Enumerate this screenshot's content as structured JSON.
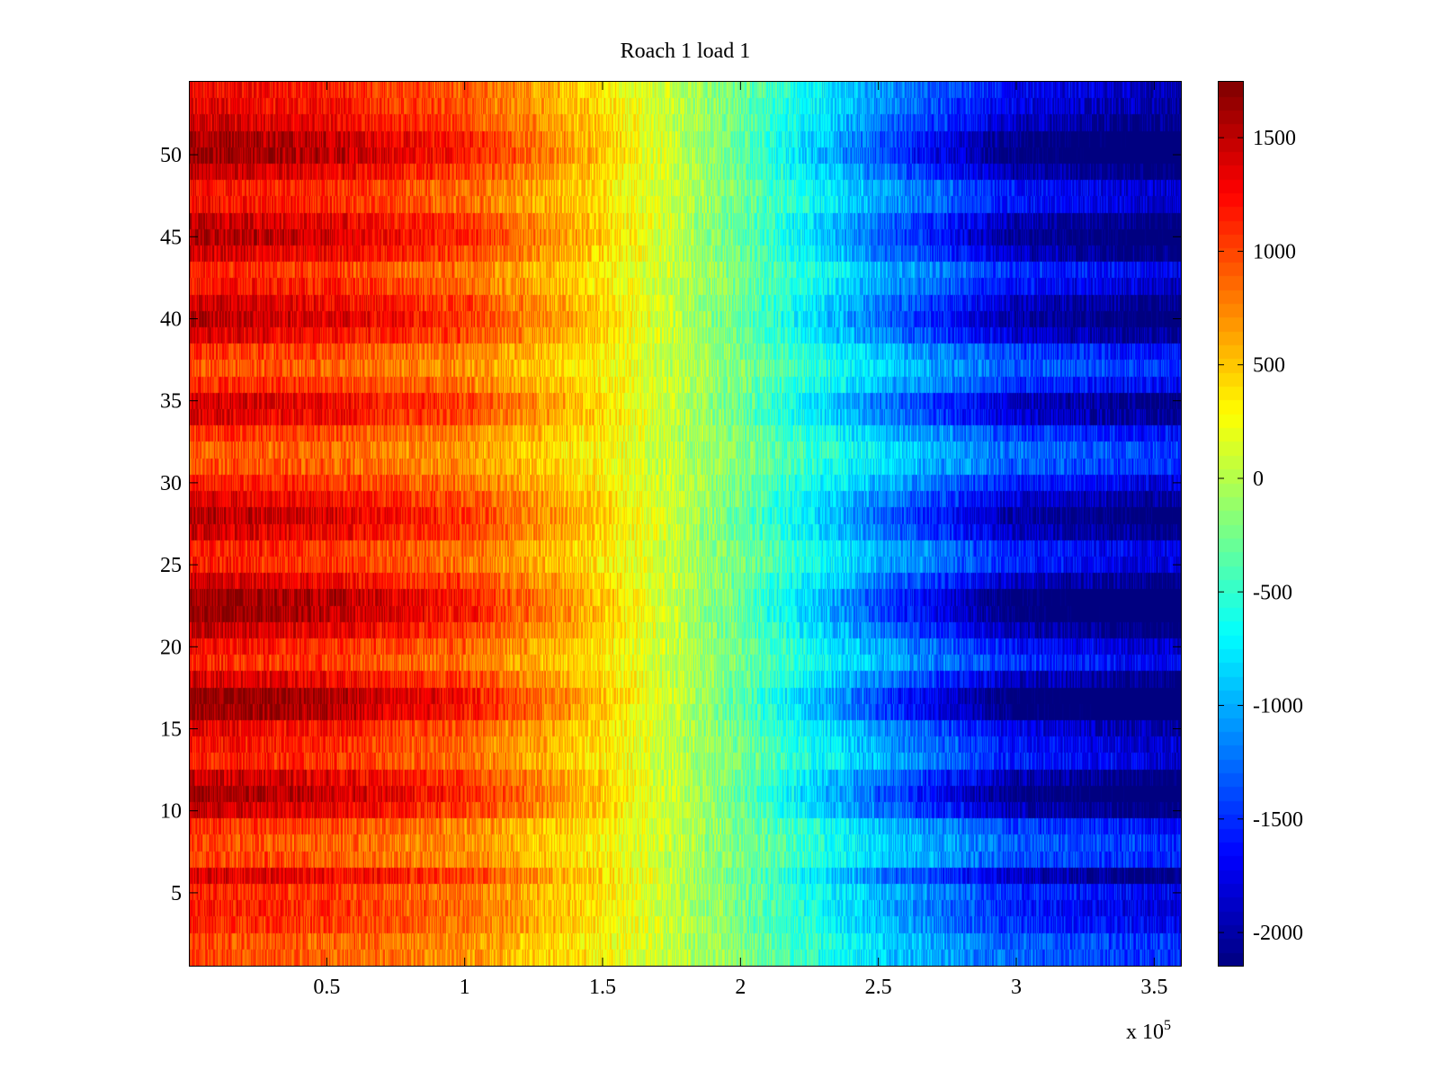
{
  "chart_data": {
    "type": "heatmap",
    "title": "Roach 1 load 1",
    "xlabel": "",
    "ylabel": "",
    "x_multiplier_label": {
      "base": "x 10",
      "exponent": "5"
    },
    "xlim": [
      0,
      360000
    ],
    "ylim": [
      0.5,
      54.5
    ],
    "x_ticks": [
      {
        "value": 50000,
        "label": "0.5"
      },
      {
        "value": 100000,
        "label": "1"
      },
      {
        "value": 150000,
        "label": "1.5"
      },
      {
        "value": 200000,
        "label": "2"
      },
      {
        "value": 250000,
        "label": "2.5"
      },
      {
        "value": 300000,
        "label": "3"
      },
      {
        "value": 350000,
        "label": "3.5"
      }
    ],
    "y_ticks": [
      {
        "value": 5,
        "label": "5"
      },
      {
        "value": 10,
        "label": "10"
      },
      {
        "value": 15,
        "label": "15"
      },
      {
        "value": 20,
        "label": "20"
      },
      {
        "value": 25,
        "label": "25"
      },
      {
        "value": 30,
        "label": "30"
      },
      {
        "value": 35,
        "label": "35"
      },
      {
        "value": 40,
        "label": "40"
      },
      {
        "value": 45,
        "label": "45"
      },
      {
        "value": 50,
        "label": "50"
      }
    ],
    "rows": 54,
    "colormap": "jet",
    "clim": [
      -2150,
      1750
    ],
    "colorbar": {
      "ticks": [
        {
          "value": 1500,
          "label": "1500"
        },
        {
          "value": 1000,
          "label": "1000"
        },
        {
          "value": 500,
          "label": "500"
        },
        {
          "value": 0,
          "label": "0"
        },
        {
          "value": -500,
          "label": "-500"
        },
        {
          "value": -1000,
          "label": "-1000"
        },
        {
          "value": -1500,
          "label": "-1500"
        },
        {
          "value": -2000,
          "label": "-2000"
        }
      ]
    },
    "trend_profile": {
      "x": [
        0,
        50000,
        100000,
        150000,
        200000,
        250000,
        300000,
        360000
      ],
      "value": [
        1000,
        900,
        700,
        300,
        -200,
        -800,
        -1300,
        -1500
      ]
    },
    "row_strength": [
      1.0,
      1.0,
      1.15,
      1.2,
      1.15,
      1.45,
      1.05,
      1.0,
      1.1,
      1.5,
      1.65,
      1.5,
      1.2,
      1.25,
      1.35,
      1.7,
      1.75,
      1.45,
      1.15,
      1.25,
      1.5,
      1.7,
      1.7,
      1.45,
      1.2,
      1.2,
      1.45,
      1.55,
      1.4,
      1.2,
      1.0,
      0.95,
      1.1,
      1.4,
      1.45,
      1.15,
      1.0,
      1.1,
      1.4,
      1.55,
      1.45,
      1.25,
      1.15,
      1.45,
      1.6,
      1.5,
      1.25,
      1.25,
      1.5,
      1.7,
      1.65,
      1.45,
      1.35,
      1.3
    ],
    "noise_amplitude": 250
  }
}
